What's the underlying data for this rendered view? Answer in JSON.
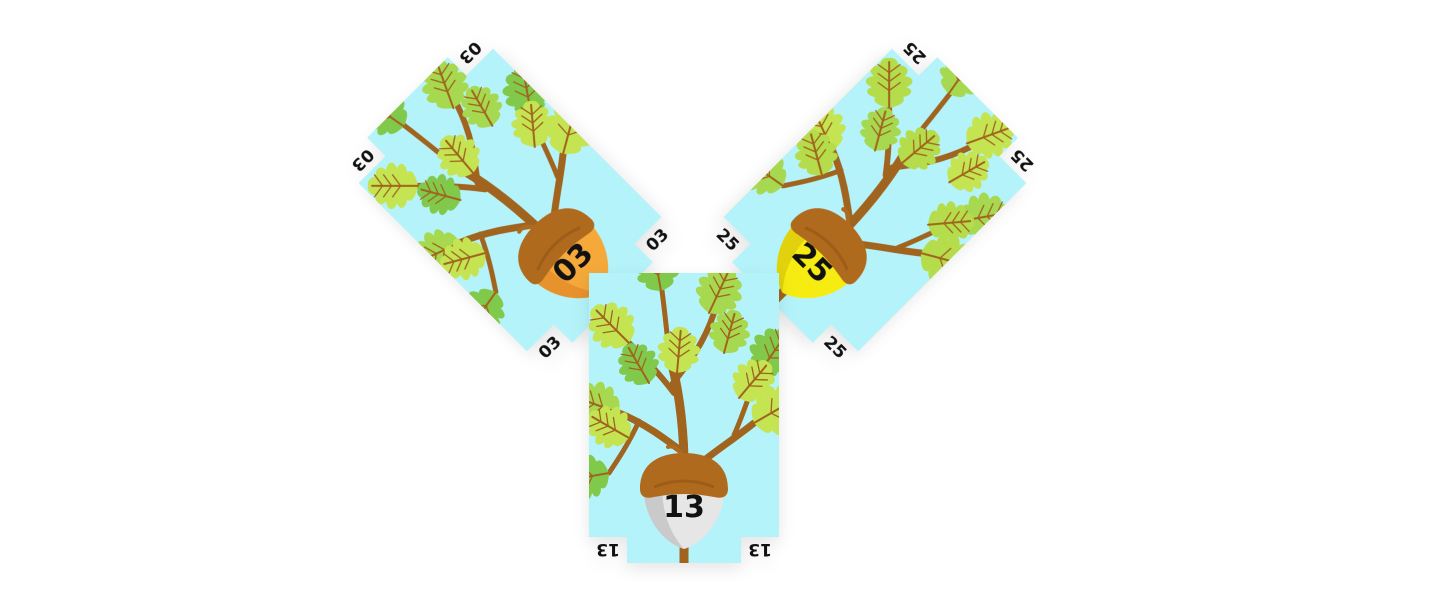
{
  "board": {
    "background": "#ffffff",
    "sky_color": "#b5f3fa",
    "branch_color": "#a0641e",
    "vein_color": "#a0641e",
    "cap_color": "#b06a1e",
    "cap_shade": "#8a4f14"
  },
  "cards": [
    {
      "id": "card-03",
      "value": "03",
      "corner_labels": [
        "03",
        "03",
        "03",
        "03"
      ],
      "nut_color": "#f4a93a",
      "nut_shade": "#e2892a",
      "leaf_colors": [
        "#80c94a",
        "#a6d94f",
        "#c4e452"
      ]
    },
    {
      "id": "card-25",
      "value": "25",
      "corner_labels": [
        "25",
        "25",
        "25",
        "25"
      ],
      "nut_color": "#f7ec12",
      "nut_shade": "#d8c80c",
      "leaf_colors": [
        "#a6d94f",
        "#c4e452",
        "#b5dc4a"
      ]
    },
    {
      "id": "card-13",
      "value": "13",
      "corner_labels": [
        "13",
        "13"
      ],
      "nut_color": "#e6e6e6",
      "nut_shade": "#bdbdbd",
      "leaf_colors": [
        "#80c94a",
        "#a6d94f",
        "#c4e452"
      ]
    }
  ]
}
